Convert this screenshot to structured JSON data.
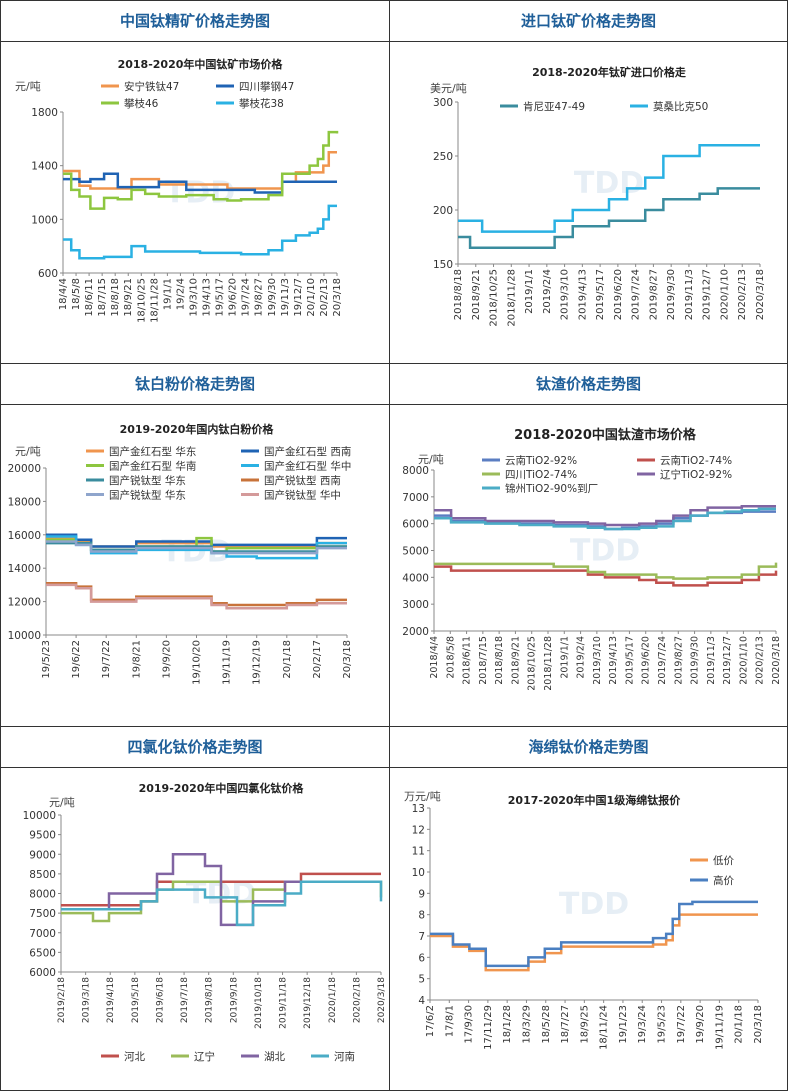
{
  "panels": [
    {
      "heading": "中国钛精矿价格走势图",
      "chart": {
        "type": "line",
        "title": "2018-2020年中国钛矿市场价格",
        "ylabel": "元/吨",
        "ylim": [
          600,
          1800
        ],
        "yticks": [
          600,
          1000,
          1400,
          1800
        ],
        "xticks": [
          "18/4/4",
          "18/5/8",
          "18/6/11",
          "18/7/15",
          "18/8/18",
          "18/9/21",
          "18/10/25",
          "18/11/28",
          "19/1/1",
          "19/2/4",
          "19/3/10",
          "19/4/13",
          "19/5/17",
          "19/6/20",
          "19/7/24",
          "19/8/27",
          "19/9/30",
          "19/11/3",
          "19/12/7",
          "20/1/10",
          "20/2/13",
          "20/3/18"
        ],
        "x": [
          0,
          0.03,
          0.06,
          0.1,
          0.15,
          0.2,
          0.25,
          0.3,
          0.35,
          0.4,
          0.45,
          0.5,
          0.55,
          0.6,
          0.65,
          0.7,
          0.75,
          0.8,
          0.85,
          0.88,
          0.9,
          0.93,
          0.95,
          0.97,
          1.0
        ],
        "series": [
          {
            "name": "安宁铁钛47",
            "color": "#f0954e",
            "values": [
              1360,
              1360,
              1250,
              1230,
              1230,
              1230,
              1300,
              1300,
              1260,
              1260,
              1260,
              1260,
              1260,
              1230,
              1230,
              1230,
              1230,
              1280,
              1350,
              1350,
              1350,
              1350,
              1400,
              1500,
              1500
            ]
          },
          {
            "name": "四川攀钢47",
            "color": "#1f63b4",
            "values": [
              1300,
              1300,
              1280,
              1300,
              1340,
              1240,
              1240,
              1240,
              1280,
              1280,
              1220,
              1220,
              1220,
              1220,
              1220,
              1200,
              1200,
              1280,
              1280,
              1280,
              1280,
              1280,
              1280,
              1280,
              1280
            ]
          },
          {
            "name": "攀枝46",
            "color": "#8dc63f",
            "values": [
              1340,
              1220,
              1170,
              1080,
              1160,
              1150,
              1220,
              1190,
              1170,
              1170,
              1180,
              1180,
              1150,
              1140,
              1150,
              1150,
              1180,
              1340,
              1340,
              1340,
              1400,
              1450,
              1550,
              1650,
              1640
            ]
          },
          {
            "name": "攀枝花38",
            "color": "#2ab1e3",
            "values": [
              850,
              770,
              710,
              710,
              720,
              720,
              800,
              760,
              760,
              760,
              760,
              750,
              750,
              750,
              740,
              740,
              770,
              840,
              880,
              880,
              900,
              930,
              1000,
              1100,
              1100
            ]
          }
        ]
      }
    },
    {
      "heading": "进口钛矿价格走势图",
      "chart": {
        "type": "line",
        "title": "2018-2020年钛矿进口价格走",
        "ylabel": "美元/吨",
        "ylim": [
          150,
          300
        ],
        "yticks": [
          150,
          200,
          250,
          300
        ],
        "xticks": [
          "2018/8/18",
          "2018/9/21",
          "2018/10/25",
          "2018/11/28",
          "2019/1/1",
          "2019/2/4",
          "2019/3/10",
          "2019/4/13",
          "2019/5/17",
          "2019/6/20",
          "2019/7/24",
          "2019/8/27",
          "2019/9/30",
          "2019/11/3",
          "2019/12/7",
          "2020/1/10",
          "2020/2/13",
          "2020/3/18"
        ],
        "x": [
          0,
          0.04,
          0.08,
          0.12,
          0.2,
          0.28,
          0.32,
          0.38,
          0.44,
          0.5,
          0.56,
          0.62,
          0.68,
          0.74,
          0.8,
          0.86,
          0.92,
          1.0
        ],
        "series": [
          {
            "name": "肯尼亚47-49",
            "color": "#3a8c9e",
            "values": [
              175,
              165,
              165,
              165,
              165,
              165,
              175,
              185,
              185,
              190,
              190,
              200,
              210,
              210,
              215,
              220,
              220,
              220
            ]
          },
          {
            "name": "莫桑比克50",
            "color": "#2ab1e3",
            "values": [
              190,
              190,
              180,
              180,
              180,
              180,
              190,
              200,
              200,
              210,
              220,
              230,
              250,
              250,
              260,
              260,
              260,
              260
            ]
          }
        ]
      }
    },
    {
      "heading": "钛白粉价格走势图",
      "chart": {
        "type": "line",
        "title": "2019-2020年国内钛白粉价格",
        "ylabel": "元/吨",
        "ylim": [
          10000,
          20000
        ],
        "yticks": [
          10000,
          12000,
          14000,
          16000,
          18000,
          20000
        ],
        "xticks": [
          "19/5/23",
          "19/6/22",
          "19/7/22",
          "19/8/21",
          "19/9/20",
          "19/10/20",
          "19/11/19",
          "19/12/19",
          "20/1/18",
          "20/2/17",
          "20/3/18"
        ],
        "x": [
          0,
          0.1,
          0.15,
          0.2,
          0.3,
          0.4,
          0.5,
          0.55,
          0.6,
          0.7,
          0.8,
          0.87,
          0.9,
          1.0
        ],
        "series": [
          {
            "name": "国产金红石型 华东",
            "color": "#f0954e",
            "values": [
              15800,
              15600,
              15300,
              15300,
              15500,
              15500,
              15500,
              15300,
              15300,
              15300,
              15300,
              15300,
              15500,
              15500
            ]
          },
          {
            "name": "国产金红石型 西南",
            "color": "#1f63b4",
            "values": [
              16000,
              15700,
              15300,
              15300,
              15600,
              15600,
              15600,
              15400,
              15400,
              15400,
              15400,
              15400,
              15800,
              15800
            ]
          },
          {
            "name": "国产金红石型 华南",
            "color": "#8dc63f",
            "values": [
              15700,
              15500,
              15100,
              15100,
              15300,
              15300,
              15800,
              15000,
              15200,
              15200,
              15200,
              15200,
              15300,
              15300
            ]
          },
          {
            "name": "国产金红石型 华中",
            "color": "#2ab1e3",
            "values": [
              15900,
              15400,
              14900,
              14900,
              15100,
              15100,
              15100,
              14900,
              14700,
              14600,
              14600,
              14600,
              15500,
              15500
            ]
          },
          {
            "name": "国产锐钛型 华东",
            "color": "#3a8c9e",
            "values": [
              15500,
              15500,
              15100,
              15100,
              15300,
              15300,
              15300,
              15000,
              15000,
              15000,
              15000,
              15000,
              15300,
              15300
            ]
          },
          {
            "name": "国产锐钛型 西南",
            "color": "#c8733a",
            "values": [
              13100,
              12900,
              12100,
              12100,
              12300,
              12300,
              12300,
              11900,
              11800,
              11800,
              11900,
              11900,
              12100,
              12100
            ]
          },
          {
            "name": "国产锐钛型 华东",
            "color": "#8fa5cc",
            "values": [
              15600,
              15400,
              15000,
              15000,
              15200,
              15200,
              15200,
              14900,
              14900,
              14900,
              14900,
              14900,
              15200,
              15200
            ]
          },
          {
            "name": "国产锐钛型 华中",
            "color": "#d49a9a",
            "values": [
              13000,
              12800,
              12000,
              12000,
              12200,
              12200,
              12200,
              11800,
              11600,
              11600,
              11800,
              11800,
              11900,
              11900
            ]
          }
        ]
      }
    },
    {
      "heading": "钛渣价格走势图",
      "chart": {
        "type": "line",
        "title": "2018-2020中国钛渣市场价格",
        "ylabel": "元/吨",
        "ylim": [
          2000,
          8000
        ],
        "yticks": [
          2000,
          3000,
          4000,
          5000,
          6000,
          7000,
          8000
        ],
        "xticks": [
          "2018/4/4",
          "2018/5/8",
          "2018/6/11",
          "2018/7/15",
          "2018/8/18",
          "2018/9/21",
          "2018/10/25",
          "2018/11/28",
          "2019/1/1",
          "2019/2/4",
          "2019/3/10",
          "2019/4/13",
          "2019/5/17",
          "2019/6/20",
          "2019/7/24",
          "2019/8/27",
          "2019/9/30",
          "2019/11/3",
          "2019/12/7",
          "2020/1/10",
          "2020/2/13",
          "2020/3/18"
        ],
        "x": [
          0,
          0.05,
          0.15,
          0.25,
          0.35,
          0.45,
          0.5,
          0.55,
          0.6,
          0.65,
          0.7,
          0.75,
          0.8,
          0.85,
          0.9,
          0.95,
          1.0
        ],
        "series": [
          {
            "name": "云南TiO2-92%",
            "color": "#5b7ec2",
            "values": [
              6300,
              6100,
              6050,
              6000,
              5950,
              5900,
              5800,
              5850,
              5900,
              6000,
              6200,
              6300,
              6400,
              6400,
              6450,
              6450,
              6450
            ]
          },
          {
            "name": "云南TiO2-74%",
            "color": "#c0504d",
            "values": [
              4400,
              4250,
              4250,
              4250,
              4250,
              4100,
              4000,
              4000,
              3900,
              3800,
              3700,
              3700,
              3800,
              3800,
              3900,
              4100,
              4250
            ]
          },
          {
            "name": "四川TiO2-74%",
            "color": "#9bbb59",
            "values": [
              4500,
              4500,
              4500,
              4500,
              4400,
              4200,
              4100,
              4100,
              4100,
              4000,
              3950,
              3950,
              4000,
              4000,
              4100,
              4400,
              4550
            ]
          },
          {
            "name": "辽宁TiO2-92%",
            "color": "#8064a2",
            "values": [
              6500,
              6200,
              6100,
              6100,
              6050,
              6000,
              5950,
              5950,
              6000,
              6100,
              6300,
              6500,
              6600,
              6600,
              6650,
              6650,
              6650
            ]
          },
          {
            "name": "锦州TiO2-90%到厂",
            "color": "#4bacc6",
            "values": [
              6200,
              6050,
              6000,
              5950,
              5900,
              5850,
              5800,
              5800,
              5850,
              5900,
              6100,
              6300,
              6400,
              6450,
              6500,
              6550,
              6550
            ]
          }
        ]
      }
    },
    {
      "heading": "四氯化钛价格走势图",
      "chart": {
        "type": "line",
        "title": "2019-2020年中国四氯化钛价格",
        "ylabel": "元/吨",
        "ylim": [
          6000,
          10000
        ],
        "yticks": [
          6000,
          6500,
          7000,
          7500,
          8000,
          8500,
          9000,
          9500,
          10000
        ],
        "xticks": [
          "2019/2/18",
          "2019/3/18",
          "2019/4/18",
          "2019/5/18",
          "2019/6/18",
          "2019/7/18",
          "2019/8/18",
          "2019/9/18",
          "2019/10/18",
          "2019/11/18",
          "2019/12/18",
          "2020/1/18",
          "2020/2/18",
          "2020/3/18"
        ],
        "x": [
          0,
          0.1,
          0.15,
          0.25,
          0.3,
          0.35,
          0.45,
          0.5,
          0.55,
          0.6,
          0.7,
          0.75,
          0.85,
          0.97,
          1.0
        ],
        "series": [
          {
            "name": "河北",
            "color": "#c0504d",
            "values": [
              7700,
              7700,
              7700,
              7800,
              8300,
              8300,
              8300,
              8300,
              8300,
              8300,
              8300,
              8500,
              8500,
              8500,
              8500
            ]
          },
          {
            "name": "辽宁",
            "color": "#9bbb59",
            "values": [
              7500,
              7300,
              7500,
              7800,
              8100,
              8300,
              8300,
              7800,
              7800,
              8100,
              8300,
              8300,
              8300,
              8300,
              7900
            ]
          },
          {
            "name": "湖北",
            "color": "#8064a2",
            "values": [
              7600,
              7600,
              8000,
              8000,
              8500,
              9000,
              8700,
              7200,
              7200,
              7800,
              8300,
              8300,
              8300,
              8300,
              8300
            ]
          },
          {
            "name": "河南",
            "color": "#4bacc6",
            "values": [
              7600,
              7600,
              7600,
              7800,
              8100,
              8100,
              7900,
              7900,
              7200,
              7700,
              8000,
              8300,
              8300,
              8300,
              7800
            ]
          }
        ]
      }
    },
    {
      "heading": "海绵钛价格走势图",
      "chart": {
        "type": "line",
        "title": "2017-2020年中国1级海绵钛报价",
        "ylabel": "万元/吨",
        "ylim": [
          4,
          13
        ],
        "yticks": [
          4,
          5,
          6,
          7,
          8,
          9,
          10,
          11,
          12,
          13
        ],
        "xticks": [
          "17/6/2",
          "17/8/1",
          "17/9/30",
          "17/11/29",
          "18/1/28",
          "18/3/29",
          "18/5/28",
          "18/7/27",
          "18/9/25",
          "18/11/24",
          "19/1/23",
          "19/3/24",
          "19/5/23",
          "19/7/22",
          "19/9/20",
          "19/11/19",
          "20/1/18",
          "20/3/18"
        ],
        "x": [
          0,
          0.07,
          0.12,
          0.17,
          0.2,
          0.3,
          0.35,
          0.4,
          0.5,
          0.6,
          0.68,
          0.72,
          0.74,
          0.76,
          0.8,
          0.9,
          1.0
        ],
        "series": [
          {
            "name": "低价",
            "color": "#f0954e",
            "values": [
              7.0,
              6.5,
              6.3,
              5.4,
              5.4,
              5.8,
              6.2,
              6.5,
              6.5,
              6.5,
              6.6,
              6.8,
              7.5,
              8.0,
              8.0,
              8.0,
              8.0
            ]
          },
          {
            "name": "高价",
            "color": "#4a7fc1",
            "values": [
              7.1,
              6.6,
              6.4,
              5.6,
              5.6,
              6.0,
              6.4,
              6.7,
              6.7,
              6.7,
              6.9,
              7.1,
              7.8,
              8.5,
              8.6,
              8.6,
              8.6
            ]
          }
        ]
      }
    }
  ]
}
